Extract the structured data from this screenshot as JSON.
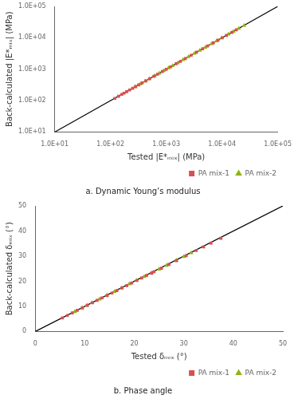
{
  "chart_data": [
    {
      "type": "scatter",
      "title": "a. Dynamic Young’s modulus",
      "x_label": "Tested |E*ₘᵢₓ| (MPa)",
      "y_label": "Back-calculated |E*ₘᵢₓ| (MPa)",
      "log": true,
      "grid": false,
      "legend": "lower right",
      "xlim": [
        10,
        100000
      ],
      "ylim": [
        10,
        100000
      ],
      "xticks": [
        {
          "value": 10,
          "label": "1.0E+01"
        },
        {
          "value": 100,
          "label": "1.0E+02"
        },
        {
          "value": 1000,
          "label": "1.0E+03"
        },
        {
          "value": 10000,
          "label": "1.0E+04"
        },
        {
          "value": 100000,
          "label": "1.0E+05"
        }
      ],
      "yticks": [
        {
          "value": 10,
          "label": "1.0E+01"
        },
        {
          "value": 100,
          "label": "1.0E+02"
        },
        {
          "value": 1000,
          "label": "1.0E+03"
        },
        {
          "value": 10000,
          "label": "1.0E+04"
        },
        {
          "value": 100000,
          "label": "1.0E+05"
        }
      ],
      "series": [
        {
          "type": "line",
          "color": "#000000",
          "line_style": "solid",
          "x": [
            10,
            100000
          ],
          "values": [
            10,
            100000
          ]
        },
        {
          "name": "PA mix-1",
          "color": "#d94f4f",
          "marker": "square",
          "x": [
            120,
            140,
            160,
            175,
            195,
            220,
            250,
            280,
            320,
            370,
            430,
            500,
            600,
            700,
            850,
            1000,
            1200,
            1500,
            1800,
            2200,
            2800,
            3500,
            4500,
            5500,
            7000,
            8500,
            10000,
            12000,
            15000,
            18000
          ],
          "values": [
            118,
            138,
            158,
            172,
            192,
            218,
            247,
            278,
            317,
            366,
            425,
            495,
            595,
            693,
            843,
            992,
            1190,
            1488,
            1786,
            2183,
            2776,
            3469,
            4462,
            5453,
            6938,
            8424,
            9909,
            11890,
            14864,
            17838
          ]
        },
        {
          "name": "PA mix-2",
          "color": "#8db510",
          "marker": "triangle",
          "x": [
            280,
            340,
            420,
            500,
            620,
            750,
            900,
            1100,
            1300,
            1600,
            2000,
            2500,
            3200,
            4000,
            5000,
            6500,
            8000,
            10000,
            13000,
            16000,
            20000,
            25000
          ],
          "values": [
            277,
            336,
            415,
            495,
            614,
            743,
            892,
            1089,
            1287,
            1585,
            1982,
            2477,
            3171,
            3963,
            4954,
            6440,
            7927,
            9909,
            12882,
            15855,
            19819,
            24773
          ]
        }
      ]
    },
    {
      "type": "scatter",
      "title": "b. Phase angle",
      "x_label": "Tested δₘᵢₓ (°)",
      "y_label": "Back-calculated δₘᵢₓ (°)",
      "grid": false,
      "legend": "lower right",
      "xlim": [
        0,
        50
      ],
      "ylim": [
        0,
        50
      ],
      "xticks": [
        0,
        10,
        20,
        30,
        40,
        50
      ],
      "yticks": [
        0,
        10,
        20,
        30,
        40,
        50
      ],
      "series": [
        {
          "type": "line",
          "color": "#000000",
          "line_style": "solid",
          "x": [
            0,
            50
          ],
          "values": [
            0,
            50
          ]
        },
        {
          "name": "PA mix-1",
          "color": "#d94f4f",
          "marker": "square",
          "x": [
            5.5,
            6.5,
            7.5,
            8.5,
            9.5,
            10.5,
            11.5,
            12.5,
            13.5,
            14.5,
            15.5,
            16.5,
            17.5,
            18.5,
            19.5,
            20.5,
            21.5,
            22.5,
            23.5,
            24.0,
            25.5,
            27.0,
            28.5,
            30.5,
            32.5,
            34.0,
            35.5,
            37.5
          ],
          "values": [
            5.4,
            6.4,
            7.4,
            8.4,
            9.4,
            10.4,
            11.4,
            12.4,
            13.4,
            14.3,
            15.3,
            16.3,
            17.3,
            18.3,
            19.3,
            20.3,
            21.3,
            22.3,
            23.2,
            23.8,
            25.2,
            26.7,
            28.2,
            30.2,
            32.2,
            33.7,
            35.2,
            37.1
          ]
        },
        {
          "name": "PA mix-2",
          "color": "#8db510",
          "marker": "triangle",
          "x": [
            8.0,
            9.5,
            10.5,
            11.5,
            13.0,
            14.5,
            16.0,
            17.5,
            19.0,
            20.5,
            22.0,
            23.5,
            25.0,
            26.5,
            28.5,
            30.0,
            31.5
          ],
          "values": [
            7.9,
            9.4,
            10.4,
            11.4,
            12.9,
            14.4,
            15.9,
            17.4,
            18.9,
            20.3,
            21.8,
            23.3,
            24.8,
            26.3,
            28.3,
            29.8,
            31.3
          ]
        }
      ]
    }
  ]
}
